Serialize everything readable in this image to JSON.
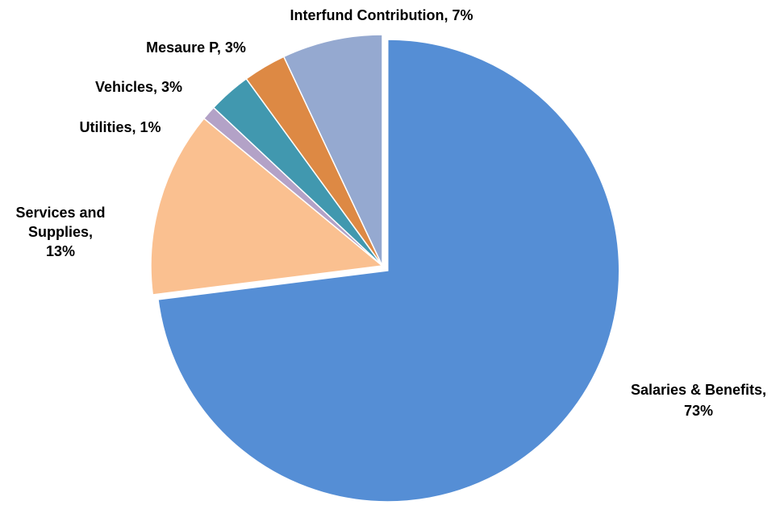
{
  "chart_data": {
    "type": "pie",
    "title": "",
    "slices": [
      {
        "name": "Salaries & Benefits",
        "value": 73,
        "label": "Salaries & Benefits,",
        "pct_label": "73%",
        "color": "#558ED5",
        "exploded": true
      },
      {
        "name": "Services and Supplies",
        "value": 13,
        "label": "Services and",
        "label2": "Supplies,",
        "pct_label": "13%",
        "color": "#FAC090",
        "exploded": false
      },
      {
        "name": "Utilities",
        "value": 1,
        "label": "Utilities, 1%",
        "color": "#B3A2C7",
        "exploded": false
      },
      {
        "name": "Vehicles",
        "value": 3,
        "label": "Vehicles, 3%",
        "color": "#4198AF",
        "exploded": false
      },
      {
        "name": "Mesaure P",
        "value": 3,
        "label": "Mesaure P, 3%",
        "color": "#DD8944",
        "exploded": false
      },
      {
        "name": "Interfund Contribution",
        "value": 7,
        "label": "Interfund Contribution, 7%",
        "color": "#95A9D0",
        "exploded": false
      }
    ]
  }
}
